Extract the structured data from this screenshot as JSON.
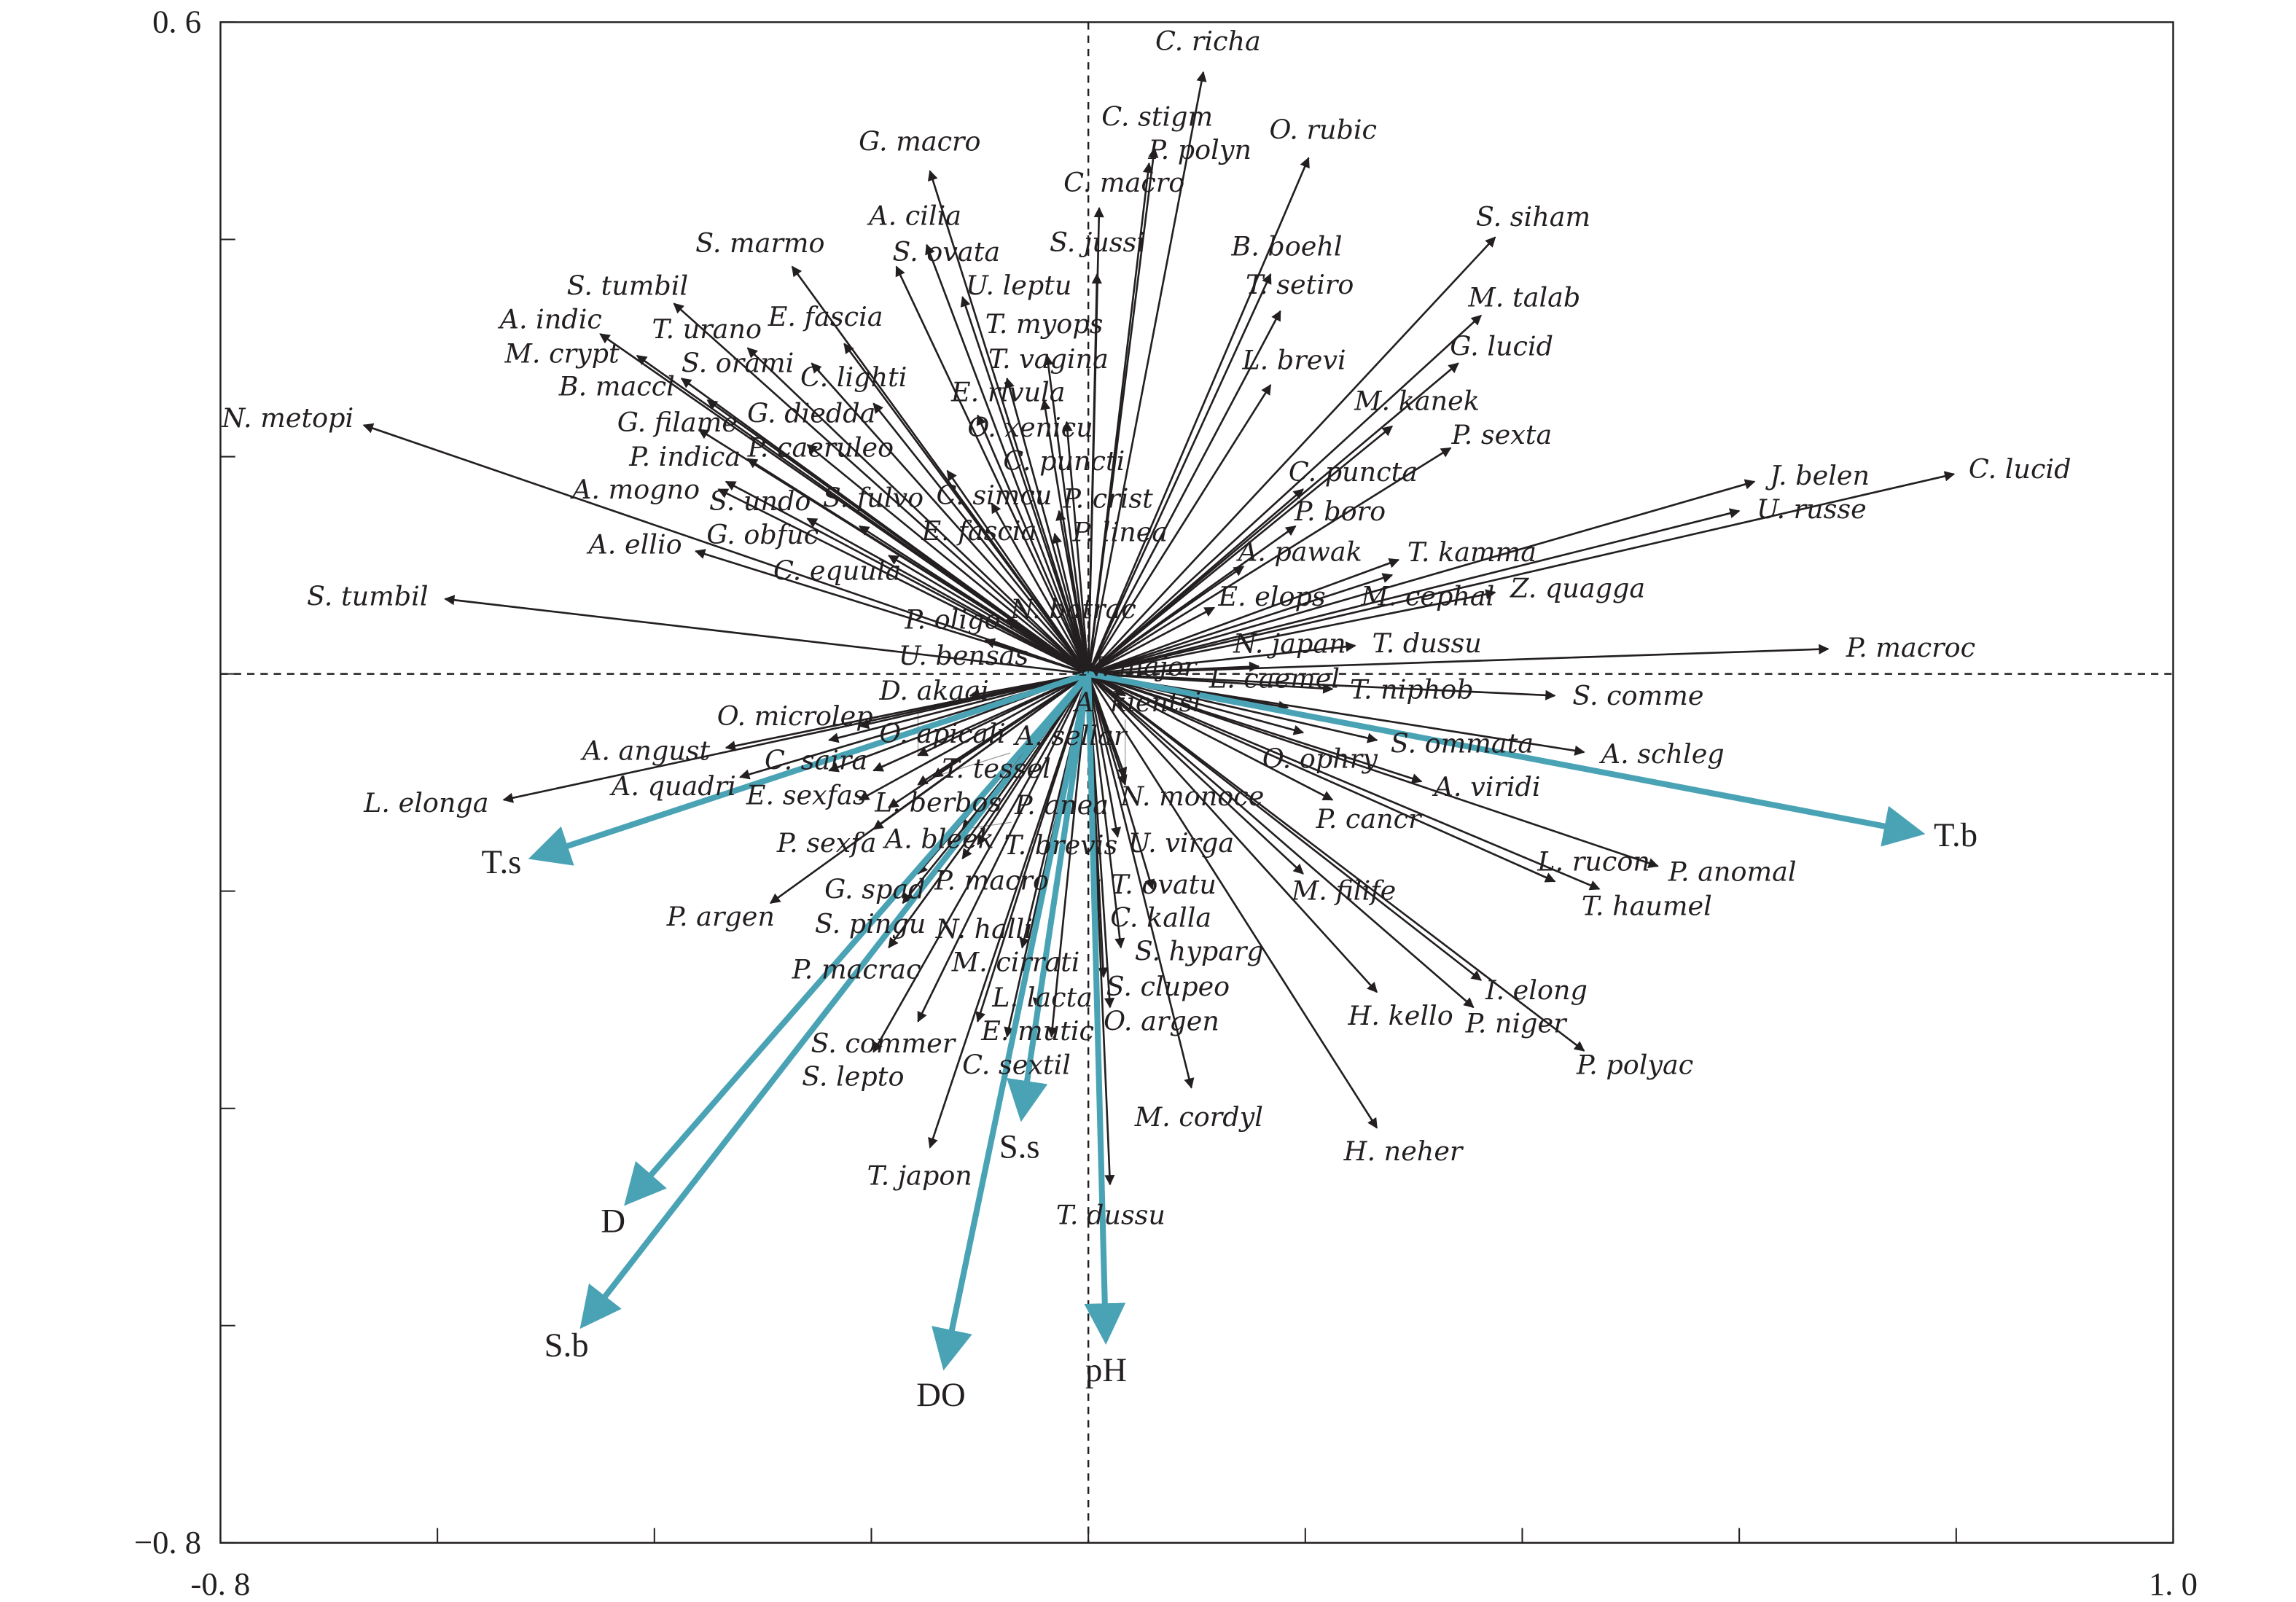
{
  "chart_data": {
    "type": "scatter",
    "subtype": "biplot-arrows",
    "xlim": [
      -0.8,
      1.0
    ],
    "ylim": [
      -0.8,
      0.6
    ],
    "x_tick_labels": [
      "-0. 8",
      "1. 0"
    ],
    "y_tick_labels": [
      "0. 6",
      "−0. 8"
    ],
    "x_ticks": [
      -0.8,
      -0.6,
      -0.4,
      -0.2,
      0,
      0.2,
      0.4,
      0.6,
      0.8,
      1.0
    ],
    "y_ticks": [
      -0.8,
      -0.6,
      -0.4,
      -0.2,
      0,
      0.2,
      0.4,
      0.6
    ],
    "env_color": "#4aa3b5",
    "species_color": "#231f20",
    "environment": [
      {
        "name": "T.b",
        "x": 0.764,
        "y": -0.146
      },
      {
        "name": "T.s",
        "x": -0.509,
        "y": -0.168
      },
      {
        "name": "D",
        "x": -0.423,
        "y": -0.484
      },
      {
        "name": "S.b",
        "x": -0.464,
        "y": -0.597
      },
      {
        "name": "DO",
        "x": -0.132,
        "y": -0.634
      },
      {
        "name": "S.s",
        "x": -0.061,
        "y": -0.405
      },
      {
        "name": "pH",
        "x": 0.016,
        "y": -0.61
      }
    ],
    "species": [
      {
        "name": "C. richa",
        "x": 0.106,
        "y": 0.554
      },
      {
        "name": "C. stigm",
        "x": 0.061,
        "y": 0.484
      },
      {
        "name": "P. polyn",
        "x": 0.056,
        "y": 0.47
      },
      {
        "name": "O. rubic",
        "x": 0.203,
        "y": 0.475
      },
      {
        "name": "G. macro",
        "x": -0.146,
        "y": 0.463
      },
      {
        "name": "C. macro",
        "x": 0.01,
        "y": 0.429
      },
      {
        "name": "S. jussi",
        "x": 0.008,
        "y": 0.368
      },
      {
        "name": "S. siham",
        "x": 0.375,
        "y": 0.402
      },
      {
        "name": "B. boehl",
        "x": 0.168,
        "y": 0.368
      },
      {
        "name": "A. cilia",
        "x": -0.149,
        "y": 0.395
      },
      {
        "name": "S. marmo",
        "x": -0.273,
        "y": 0.375
      },
      {
        "name": "S. ovata",
        "x": -0.177,
        "y": 0.375
      },
      {
        "name": "U. leptu",
        "x": -0.116,
        "y": 0.347
      },
      {
        "name": "T. setiro",
        "x": 0.177,
        "y": 0.334
      },
      {
        "name": "M. talab",
        "x": 0.362,
        "y": 0.33
      },
      {
        "name": "S. tumbil",
        "x": -0.382,
        "y": 0.341
      },
      {
        "name": "A. indic",
        "x": -0.45,
        "y": 0.313
      },
      {
        "name": "T. urano",
        "x": -0.314,
        "y": 0.3
      },
      {
        "name": "E. fascia",
        "x": -0.225,
        "y": 0.304
      },
      {
        "name": "S. orami",
        "x": -0.255,
        "y": 0.286
      },
      {
        "name": "T. myops",
        "x": -0.038,
        "y": 0.293
      },
      {
        "name": "T. vagina",
        "x": -0.075,
        "y": 0.272
      },
      {
        "name": "G. lucid",
        "x": 0.341,
        "y": 0.286
      },
      {
        "name": "M. crypt",
        "x": -0.416,
        "y": 0.293
      },
      {
        "name": "B. maccl",
        "x": -0.375,
        "y": 0.272
      },
      {
        "name": "O. xenicu",
        "x": -0.041,
        "y": 0.252
      },
      {
        "name": "L. brevi",
        "x": 0.168,
        "y": 0.266
      },
      {
        "name": "N. metopi",
        "x": -0.668,
        "y": 0.229
      },
      {
        "name": "G. filame",
        "x": -0.351,
        "y": 0.252
      },
      {
        "name": "C. lighti",
        "x": -0.198,
        "y": 0.249
      },
      {
        "name": "E. rivula",
        "x": -0.102,
        "y": 0.238
      },
      {
        "name": "C. puncti",
        "x": -0.02,
        "y": 0.232
      },
      {
        "name": "P. indica",
        "x": -0.359,
        "y": 0.225
      },
      {
        "name": "M. kanek",
        "x": 0.28,
        "y": 0.228
      },
      {
        "name": "P. sexta",
        "x": 0.334,
        "y": 0.208
      },
      {
        "name": "J. belen",
        "x": 0.614,
        "y": 0.177
      },
      {
        "name": "C. lucid",
        "x": 0.798,
        "y": 0.184
      },
      {
        "name": "U. russe",
        "x": 0.6,
        "y": 0.15
      },
      {
        "name": "G. diedda",
        "x": -0.259,
        "y": 0.211
      },
      {
        "name": "P. caeruleo",
        "x": -0.314,
        "y": 0.198
      },
      {
        "name": "S. undo",
        "x": -0.334,
        "y": 0.177
      },
      {
        "name": "A. mogno",
        "x": -0.341,
        "y": 0.17
      },
      {
        "name": "C. simcu",
        "x": -0.13,
        "y": 0.187
      },
      {
        "name": "C. puncta",
        "x": 0.198,
        "y": 0.17
      },
      {
        "name": "G. obfuc",
        "x": -0.259,
        "y": 0.143
      },
      {
        "name": "E. fascia",
        "x": -0.089,
        "y": 0.157
      },
      {
        "name": "P. crist",
        "x": -0.027,
        "y": 0.15
      },
      {
        "name": "P. linea",
        "x": -0.031,
        "y": 0.129
      },
      {
        "name": "P. boro",
        "x": 0.191,
        "y": 0.136
      },
      {
        "name": "A. ellio",
        "x": -0.362,
        "y": 0.113
      },
      {
        "name": "S. fulvo",
        "x": -0.211,
        "y": 0.136
      },
      {
        "name": "C. equula",
        "x": -0.184,
        "y": 0.109
      },
      {
        "name": "T. kamma",
        "x": 0.286,
        "y": 0.105
      },
      {
        "name": "A. pawak",
        "x": 0.143,
        "y": 0.099
      },
      {
        "name": "M. cephal",
        "x": 0.28,
        "y": 0.091
      },
      {
        "name": "Z. quagga",
        "x": 0.375,
        "y": 0.075
      },
      {
        "name": "S. tumbil",
        "x": -0.593,
        "y": 0.069
      },
      {
        "name": "N. batrac",
        "x": -0.075,
        "y": 0.05
      },
      {
        "name": "P. oligo",
        "x": -0.095,
        "y": 0.031
      },
      {
        "name": "E. elops",
        "x": 0.116,
        "y": 0.061
      },
      {
        "name": "T. dussu",
        "x": 0.246,
        "y": 0.026
      },
      {
        "name": "P. macroc",
        "x": 0.682,
        "y": 0.023
      },
      {
        "name": "N. japan",
        "x": 0.157,
        "y": 0.007
      },
      {
        "name": "T. niphob",
        "x": 0.225,
        "y": -0.014
      },
      {
        "name": "S. comme",
        "x": 0.43,
        "y": -0.02
      },
      {
        "name": "A. schleg",
        "x": 0.457,
        "y": -0.072
      },
      {
        "name": "L. caemel",
        "x": 0.184,
        "y": -0.031
      },
      {
        "name": "O. ophry",
        "x": 0.198,
        "y": -0.054
      },
      {
        "name": "S. ommata",
        "x": 0.266,
        "y": -0.061
      },
      {
        "name": "N. major",
        "x": 0.034,
        "y": -0.02
      },
      {
        "name": "A. kientsi",
        "x": 0.034,
        "y": -0.095
      },
      {
        "name": "A. viridi",
        "x": 0.307,
        "y": -0.099
      },
      {
        "name": "P. cancr",
        "x": 0.225,
        "y": -0.116
      },
      {
        "name": "P. anomal",
        "x": 0.525,
        "y": -0.177
      },
      {
        "name": "T. haumel",
        "x": 0.471,
        "y": -0.198
      },
      {
        "name": "L. rucon",
        "x": 0.43,
        "y": -0.191
      },
      {
        "name": "M. filife",
        "x": 0.198,
        "y": -0.184
      },
      {
        "name": "I. elong",
        "x": 0.362,
        "y": -0.282
      },
      {
        "name": "P. niger",
        "x": 0.355,
        "y": -0.307
      },
      {
        "name": "P. polyac",
        "x": 0.457,
        "y": -0.347
      },
      {
        "name": "H. kello",
        "x": 0.266,
        "y": -0.293
      },
      {
        "name": "H. neher",
        "x": 0.266,
        "y": -0.418
      },
      {
        "name": "M. cordyl",
        "x": 0.095,
        "y": -0.381
      },
      {
        "name": "T. dussu",
        "x": 0.02,
        "y": -0.47
      },
      {
        "name": "C. kalla",
        "x": 0.059,
        "y": -0.198
      },
      {
        "name": "U. virga",
        "x": 0.027,
        "y": -0.15
      },
      {
        "name": "T. ovatu",
        "x": 0.007,
        "y": -0.198
      },
      {
        "name": "N. monoce",
        "x": 0.034,
        "y": -0.102
      },
      {
        "name": "S. hyparg",
        "x": 0.03,
        "y": -0.252
      },
      {
        "name": "S. clupeo",
        "x": 0.014,
        "y": -0.279
      },
      {
        "name": "O. argen",
        "x": 0.02,
        "y": -0.307
      },
      {
        "name": "L. lacta",
        "x": -0.034,
        "y": -0.334
      },
      {
        "name": "C. sextil",
        "x": -0.075,
        "y": -0.334
      },
      {
        "name": "M. cirrati",
        "x": -0.048,
        "y": -0.307
      },
      {
        "name": "N. halli",
        "x": -0.061,
        "y": -0.252
      },
      {
        "name": "T. japon",
        "x": -0.146,
        "y": -0.436
      },
      {
        "name": "S. lepto",
        "x": -0.198,
        "y": -0.348
      },
      {
        "name": "S. commer",
        "x": -0.157,
        "y": -0.32
      },
      {
        "name": "E. mutic",
        "x": -0.102,
        "y": -0.32
      },
      {
        "name": "P. macrac",
        "x": -0.184,
        "y": -0.252
      },
      {
        "name": "S. pingu",
        "x": -0.171,
        "y": -0.211
      },
      {
        "name": "G. spad",
        "x": -0.157,
        "y": -0.184
      },
      {
        "name": "P. macro",
        "x": -0.116,
        "y": -0.17
      },
      {
        "name": "T. brevis",
        "x": -0.102,
        "y": -0.157
      },
      {
        "name": "P. argen",
        "x": -0.293,
        "y": -0.211
      },
      {
        "name": "P. sexfa",
        "x": -0.198,
        "y": -0.143
      },
      {
        "name": "L. berbos",
        "x": -0.211,
        "y": -0.116
      },
      {
        "name": "A. bleek",
        "x": -0.184,
        "y": -0.123
      },
      {
        "name": "E. sexfas",
        "x": -0.239,
        "y": -0.089
      },
      {
        "name": "T. tessel",
        "x": -0.157,
        "y": -0.102
      },
      {
        "name": "A. sellar",
        "x": -0.143,
        "y": -0.095
      },
      {
        "name": "P. anea",
        "x": -0.116,
        "y": -0.143
      },
      {
        "name": "A. quadri",
        "x": -0.321,
        "y": -0.095
      },
      {
        "name": "L. elonga",
        "x": -0.539,
        "y": -0.116
      },
      {
        "name": "A. angust",
        "x": -0.334,
        "y": -0.068
      },
      {
        "name": "O. microlep",
        "x": -0.239,
        "y": -0.061
      },
      {
        "name": "O. apicali",
        "x": -0.211,
        "y": -0.048
      },
      {
        "name": "U. bensas",
        "x": -0.109,
        "y": -0.02
      },
      {
        "name": "C. saira",
        "x": -0.198,
        "y": -0.089
      },
      {
        "name": "D. akaai",
        "x": -0.157,
        "y": -0.075
      }
    ]
  }
}
